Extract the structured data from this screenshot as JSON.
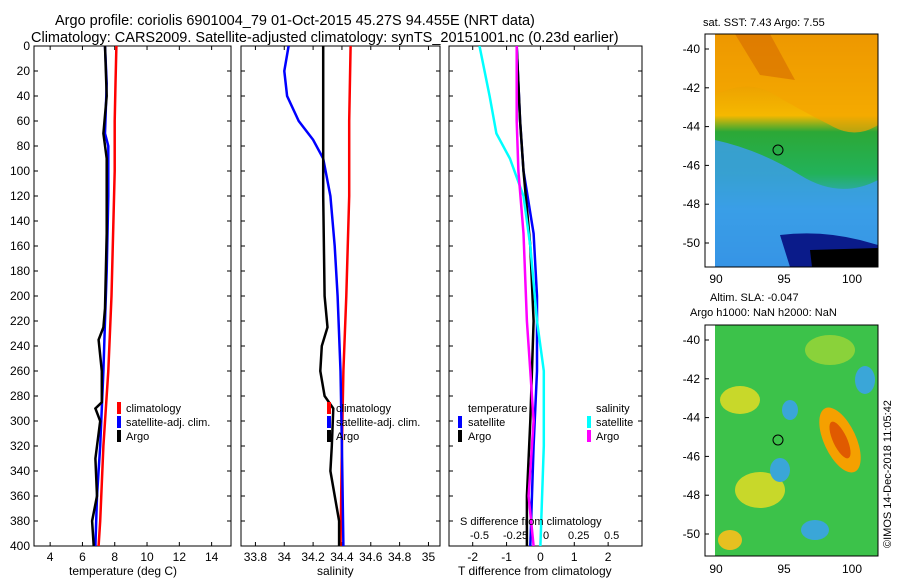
{
  "title_line1": "Argo profile: coriolis 6901004_79 01-Oct-2015 45.27S 94.455E (NRT data)",
  "title_line2": "Climatology: CARS2009. Satellite-adjusted climatology: synTS_20151001.nc (0.23d earlier)",
  "colors": {
    "clim": "#ff0000",
    "sat": "#0000ff",
    "argo": "#000000",
    "sat_sal": "#00ffff",
    "argo_sal": "#ff00ff"
  },
  "chart_data": [
    {
      "id": "temperature",
      "type": "line",
      "xlabel": "temperature (deg C)",
      "xlim": [
        3,
        15.2
      ],
      "xticks": [
        4,
        6,
        8,
        10,
        12,
        14
      ],
      "ylim": [
        400,
        0
      ],
      "yticks": [
        0,
        20,
        40,
        60,
        80,
        100,
        120,
        140,
        160,
        180,
        200,
        220,
        240,
        260,
        280,
        300,
        320,
        340,
        360,
        380,
        400
      ],
      "legend": [
        "climatology",
        "satellite-adj. clim.",
        "Argo"
      ],
      "series": [
        {
          "name": "climatology",
          "color": "clim",
          "points": [
            [
              8.1,
              0
            ],
            [
              8.05,
              30
            ],
            [
              8.0,
              60
            ],
            [
              8.0,
              100
            ],
            [
              7.9,
              150
            ],
            [
              7.8,
              200
            ],
            [
              7.6,
              260
            ],
            [
              7.3,
              320
            ],
            [
              7.1,
              380
            ],
            [
              7.0,
              400
            ]
          ]
        },
        {
          "name": "satellite-adj. clim.",
          "color": "sat",
          "points": [
            [
              7.4,
              0
            ],
            [
              7.5,
              30
            ],
            [
              7.4,
              70
            ],
            [
              7.6,
              80
            ],
            [
              7.6,
              120
            ],
            [
              7.5,
              180
            ],
            [
              7.4,
              220
            ],
            [
              7.3,
              260
            ],
            [
              7.1,
              320
            ],
            [
              6.9,
              360
            ],
            [
              6.8,
              400
            ]
          ]
        },
        {
          "name": "Argo",
          "color": "argo",
          "points": [
            [
              7.4,
              0
            ],
            [
              7.5,
              40
            ],
            [
              7.3,
              70
            ],
            [
              7.5,
              90
            ],
            [
              7.5,
              150
            ],
            [
              7.4,
              210
            ],
            [
              7.3,
              225
            ],
            [
              7.0,
              235
            ],
            [
              7.2,
              260
            ],
            [
              7.2,
              285
            ],
            [
              6.8,
              290
            ],
            [
              7.1,
              300
            ],
            [
              6.8,
              330
            ],
            [
              6.9,
              360
            ],
            [
              6.6,
              380
            ],
            [
              6.7,
              400
            ]
          ]
        }
      ]
    },
    {
      "id": "salinity",
      "type": "line",
      "xlabel": "salinity",
      "xlim": [
        33.7,
        35.08
      ],
      "xticks": [
        33.8,
        34,
        34.2,
        34.4,
        34.6,
        34.8,
        35
      ],
      "ylim": [
        400,
        0
      ],
      "legend": [
        "climatology",
        "satellite-adj. clim.",
        "Argo"
      ],
      "series": [
        {
          "name": "climatology",
          "color": "clim",
          "points": [
            [
              34.46,
              0
            ],
            [
              34.45,
              60
            ],
            [
              34.45,
              120
            ],
            [
              34.43,
              200
            ],
            [
              34.41,
              260
            ],
            [
              34.4,
              320
            ],
            [
              34.39,
              400
            ]
          ]
        },
        {
          "name": "satellite-adj. clim.",
          "color": "sat",
          "points": [
            [
              34.03,
              0
            ],
            [
              34.0,
              20
            ],
            [
              34.02,
              40
            ],
            [
              34.1,
              60
            ],
            [
              34.2,
              75
            ],
            [
              34.27,
              90
            ],
            [
              34.32,
              120
            ],
            [
              34.35,
              160
            ],
            [
              34.37,
              200
            ],
            [
              34.39,
              260
            ],
            [
              34.4,
              320
            ],
            [
              34.41,
              400
            ]
          ]
        },
        {
          "name": "Argo",
          "color": "argo",
          "points": [
            [
              34.27,
              0
            ],
            [
              34.27,
              120
            ],
            [
              34.28,
              200
            ],
            [
              34.3,
              225
            ],
            [
              34.26,
              240
            ],
            [
              34.25,
              260
            ],
            [
              34.28,
              280
            ],
            [
              34.34,
              290
            ],
            [
              34.33,
              320
            ],
            [
              34.32,
              340
            ],
            [
              34.38,
              380
            ],
            [
              34.38,
              400
            ]
          ]
        }
      ]
    },
    {
      "id": "difference",
      "type": "line",
      "xlabel": "T difference from climatology",
      "xlabel_top": "S difference from climatology",
      "xlim": [
        -2.7,
        3
      ],
      "xticks": [
        -2,
        -1,
        0,
        1,
        2
      ],
      "sticks_labels": [
        "-0.5",
        "-0.25",
        "0",
        "0.25",
        "0.5"
      ],
      "ylim": [
        400,
        0
      ],
      "legend_left_title": "temperature",
      "legend_right_title": "salinity",
      "legend": [
        "satellite",
        "Argo",
        "satellite",
        "Argo"
      ],
      "series": [
        {
          "name": "T satellite",
          "color": "sat",
          "points": [
            [
              -0.7,
              0
            ],
            [
              -0.6,
              60
            ],
            [
              -0.5,
              100
            ],
            [
              -0.2,
              150
            ],
            [
              -0.1,
              200
            ],
            [
              -0.1,
              260
            ],
            [
              -0.2,
              320
            ],
            [
              -0.3,
              400
            ]
          ]
        },
        {
          "name": "T Argo",
          "color": "argo",
          "points": [
            [
              -0.7,
              0
            ],
            [
              -0.6,
              60
            ],
            [
              -0.5,
              100
            ],
            [
              -0.3,
              160
            ],
            [
              -0.2,
              220
            ],
            [
              -0.3,
              300
            ],
            [
              -0.4,
              360
            ],
            [
              -0.4,
              400
            ]
          ]
        },
        {
          "name": "S satellite",
          "color": "sat_sal",
          "points": [
            [
              -1.8,
              0
            ],
            [
              -1.5,
              40
            ],
            [
              -1.3,
              70
            ],
            [
              -0.9,
              90
            ],
            [
              -0.5,
              120
            ],
            [
              -0.3,
              160
            ],
            [
              -0.1,
              220
            ],
            [
              0.1,
              260
            ],
            [
              0.1,
              320
            ],
            [
              0.0,
              400
            ]
          ]
        },
        {
          "name": "S Argo",
          "color": "argo_sal",
          "points": [
            [
              -0.7,
              0
            ],
            [
              -0.7,
              60
            ],
            [
              -0.65,
              100
            ],
            [
              -0.5,
              150
            ],
            [
              -0.4,
              220
            ],
            [
              -0.3,
              260
            ],
            [
              -0.2,
              300
            ],
            [
              -0.35,
              360
            ],
            [
              -0.2,
              400
            ]
          ]
        }
      ]
    }
  ],
  "map_top": {
    "title": "sat. SST: 7.43 Argo: 7.55",
    "xticks": [
      "90",
      "95",
      "100"
    ],
    "yticks": [
      "-40",
      "-42",
      "-44",
      "-46",
      "-48",
      "-50"
    ]
  },
  "map_bottom": {
    "title1": "Altim. SLA: -0.047",
    "title2": "Argo h1000: NaN h2000: NaN",
    "xticks": [
      "90",
      "95",
      "100"
    ],
    "yticks": [
      "-40",
      "-42",
      "-44",
      "-46",
      "-48",
      "-50"
    ]
  },
  "credit": "©IMOS 14-Dec-2018 11:05:42"
}
